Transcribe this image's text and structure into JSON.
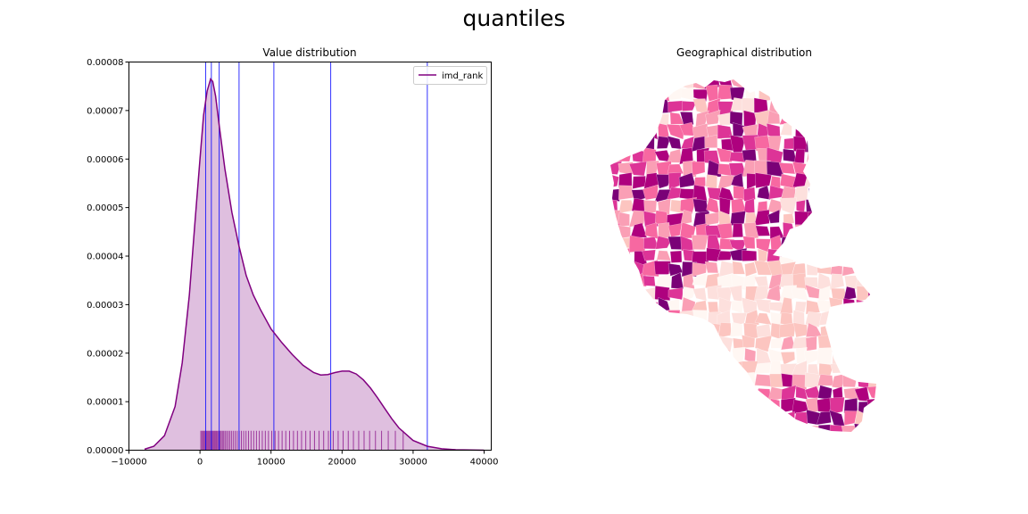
{
  "figure": {
    "title": "quantiles"
  },
  "chart_data": [
    {
      "type": "area",
      "title": "Value distribution",
      "xlabel": "",
      "ylabel": "",
      "xlim": [
        -10000,
        41000
      ],
      "ylim": [
        0,
        8e-05
      ],
      "x_ticks": [
        -10000,
        0,
        10000,
        20000,
        30000,
        40000
      ],
      "x_tick_labels": [
        "−10000",
        "0",
        "10000",
        "20000",
        "30000",
        "40000"
      ],
      "y_ticks": [
        0,
        1e-05,
        2e-05,
        3e-05,
        4e-05,
        5e-05,
        6e-05,
        7e-05,
        8e-05
      ],
      "y_tick_labels": [
        "0.00000",
        "0.00001",
        "0.00002",
        "0.00003",
        "0.00004",
        "0.00005",
        "0.00006",
        "0.00007",
        "0.00008"
      ],
      "legend_position": "top-right",
      "grid": false,
      "series": [
        {
          "name": "imd_rank",
          "color": "#800080",
          "fill": "#dfbfdf",
          "x": [
            -7800,
            -6500,
            -5000,
            -3500,
            -2500,
            -1500,
            -700,
            0,
            500,
            1000,
            1500,
            1800,
            2200,
            2700,
            3500,
            4500,
            5500,
            6500,
            7500,
            8500,
            10000,
            11500,
            13000,
            14500,
            16000,
            17000,
            18000,
            19000,
            20000,
            21000,
            22000,
            23000,
            24000,
            25000,
            26000,
            27000,
            28000,
            30000,
            32000,
            34000,
            36000,
            38000,
            40000
          ],
          "y": [
            2e-07,
            8e-07,
            3e-06,
            9e-06,
            1.8e-05,
            3.2e-05,
            4.7e-05,
            6e-05,
            6.9e-05,
            7.4e-05,
            7.65e-05,
            7.6e-05,
            7.3e-05,
            6.7e-05,
            5.8e-05,
            4.9e-05,
            4.2e-05,
            3.6e-05,
            3.2e-05,
            2.9e-05,
            2.5e-05,
            2.22e-05,
            1.97e-05,
            1.75e-05,
            1.6e-05,
            1.55e-05,
            1.56e-05,
            1.6e-05,
            1.63e-05,
            1.63e-05,
            1.57e-05,
            1.45e-05,
            1.28e-05,
            1.08e-05,
            8.6e-06,
            6.5e-06,
            4.6e-06,
            2e-06,
            8e-07,
            3e-07,
            1e-07,
            3e-08,
            0.0
          ]
        }
      ],
      "quantile_lines": [
        800,
        1600,
        2700,
        5500,
        10400,
        18400,
        32000
      ],
      "rug_values": [
        120,
        260,
        410,
        530,
        690,
        830,
        950,
        1080,
        1210,
        1330,
        1470,
        1590,
        1720,
        1850,
        1980,
        2110,
        2250,
        2380,
        2520,
        2670,
        2830,
        2990,
        3160,
        3340,
        3530,
        3740,
        3960,
        4190,
        4430,
        4680,
        4950,
        5230,
        5520,
        5830,
        6150,
        6480,
        6830,
        7190,
        7560,
        7950,
        8350,
        8770,
        9200,
        9640,
        10100,
        10570,
        11060,
        11560,
        12080,
        12610,
        13160,
        13720,
        14300,
        14890,
        15500,
        16120,
        16760,
        17410,
        18080,
        18760,
        19450,
        20150,
        20870,
        21600,
        22340,
        23100,
        23880,
        24700,
        25560,
        26500,
        27500,
        28600
      ]
    },
    {
      "type": "map",
      "title": "Geographical distribution",
      "color_classes": [
        "#fff7f3",
        "#fde0dd",
        "#fcc5c0",
        "#fa9fb5",
        "#f768a1",
        "#dd3497",
        "#ae017e",
        "#7a0177"
      ]
    }
  ]
}
